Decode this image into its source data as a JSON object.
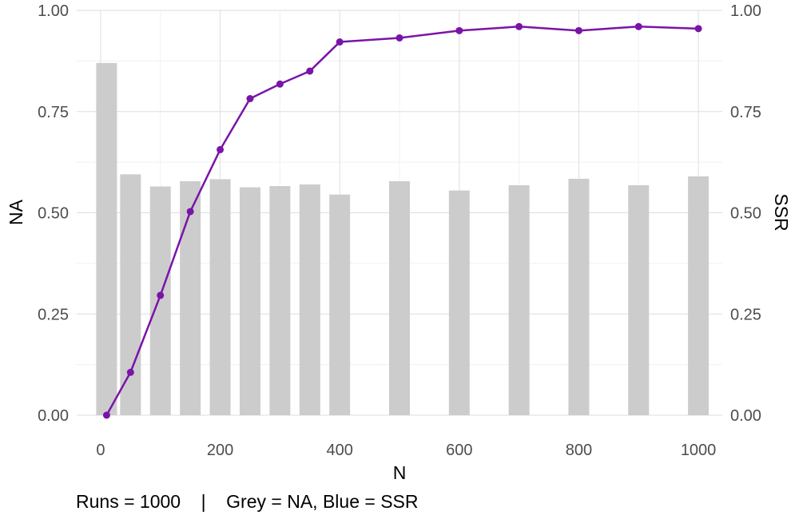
{
  "chart_data": {
    "type": "bar",
    "xlabel": "N",
    "ylabel_left": "NA",
    "ylabel_right": "SSR",
    "caption": "Runs = 1000    |    Grey = NA, Blue = SSR",
    "xlim": [
      -40,
      1040
    ],
    "ylim": [
      0,
      1
    ],
    "x_ticks": [
      0,
      200,
      400,
      600,
      800,
      1000
    ],
    "x_tick_labels": [
      "0",
      "200",
      "400",
      "600",
      "800",
      "1000"
    ],
    "y_ticks": [
      0,
      0.25,
      0.5,
      0.75,
      1
    ],
    "y_tick_labels": [
      "0.00",
      "0.25",
      "0.50",
      "0.75",
      "1.00"
    ],
    "grid": true,
    "series": [
      {
        "type": "bar",
        "color": "#cccccc",
        "x": [
          10,
          50,
          100,
          150,
          200,
          250,
          300,
          350,
          400,
          500,
          600,
          700,
          800,
          900,
          1000
        ],
        "values": [
          0.87,
          0.595,
          0.565,
          0.578,
          0.583,
          0.563,
          0.566,
          0.57,
          0.545,
          0.578,
          0.555,
          0.568,
          0.584,
          0.568,
          0.59
        ]
      },
      {
        "type": "line",
        "color": "#7a14a8",
        "x": [
          10,
          50,
          100,
          150,
          200,
          250,
          300,
          350,
          400,
          500,
          600,
          700,
          800,
          900,
          1000
        ],
        "values": [
          0.0,
          0.106,
          0.296,
          0.503,
          0.656,
          0.782,
          0.818,
          0.85,
          0.922,
          0.932,
          0.95,
          0.96,
          0.95,
          0.96,
          0.955
        ]
      }
    ]
  }
}
